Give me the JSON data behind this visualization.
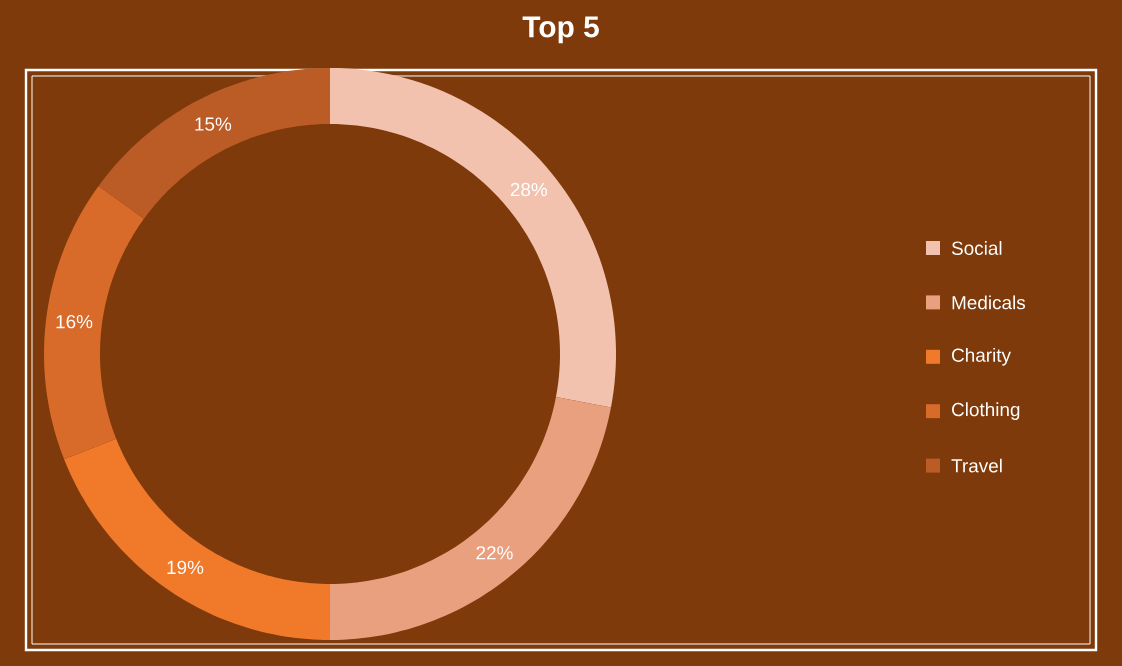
{
  "chart_data": {
    "type": "donut",
    "title": "Top 5",
    "categories": [
      "Social",
      "Medicals",
      "Charity",
      "Clothing",
      "Travel"
    ],
    "values": [
      28,
      22,
      19,
      16,
      15
    ],
    "colors": [
      "#f3c2ae",
      "#e9a07e",
      "#f07a2a",
      "#d86a2a",
      "#bb5c26"
    ],
    "value_labels": [
      "28%",
      "22%",
      "19%",
      "16%",
      "15%"
    ],
    "legend": "right"
  }
}
